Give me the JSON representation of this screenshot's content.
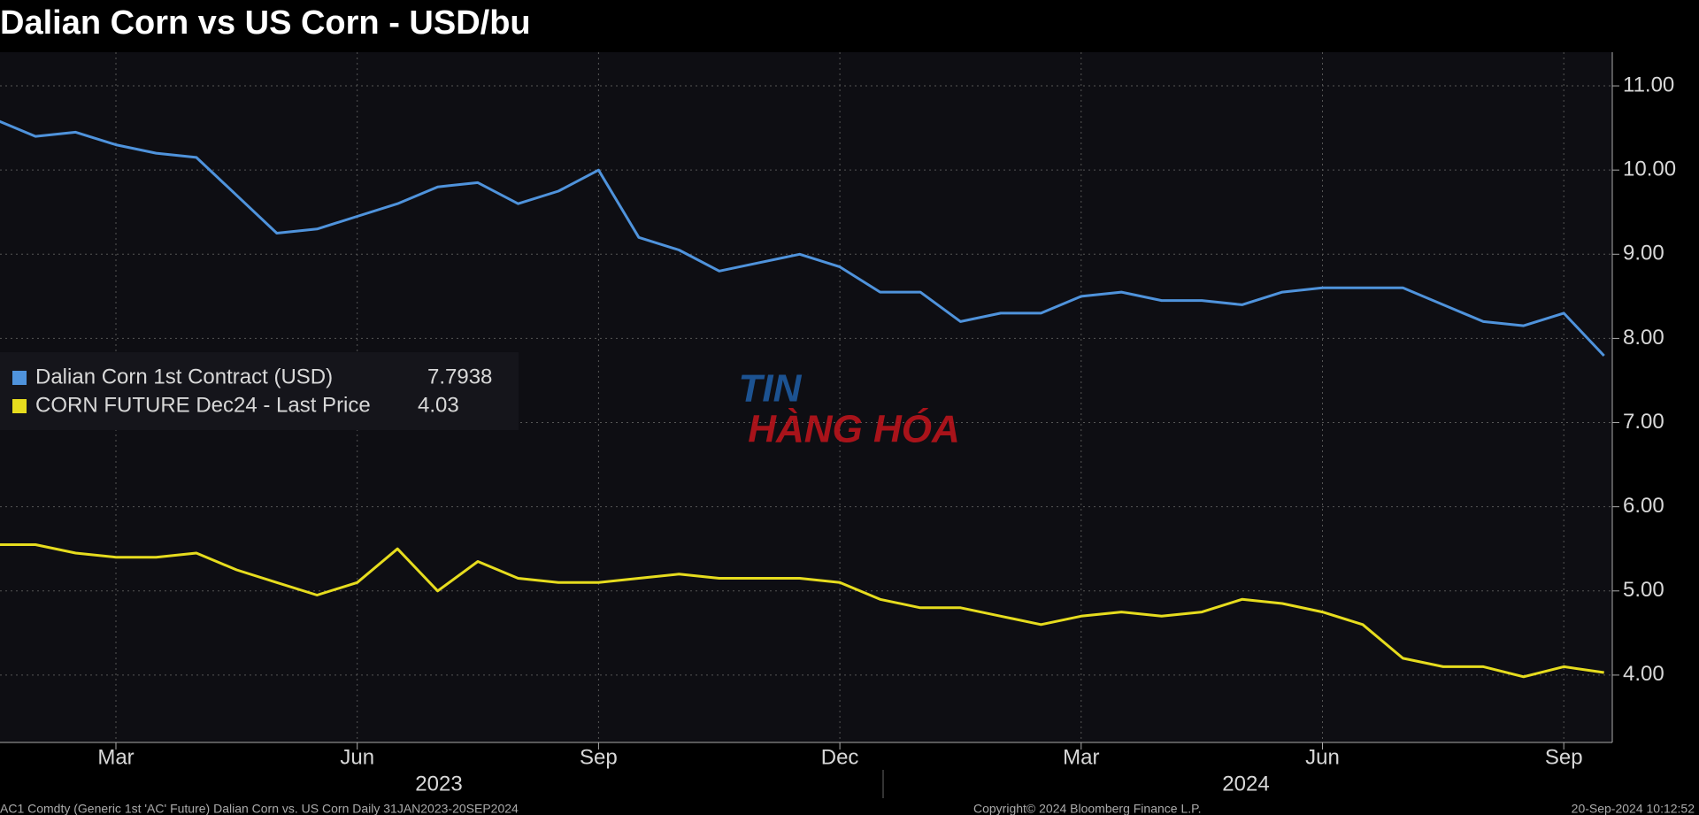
{
  "chart_data": {
    "type": "line",
    "title": "Dalian Corn vs US Corn - USD/bu",
    "categories": [
      null,
      null,
      null,
      "Mar",
      null,
      null,
      null,
      null,
      null,
      "Jun",
      null,
      null,
      null,
      null,
      null,
      "Sep",
      null,
      null,
      null,
      null,
      null,
      "Dec",
      null,
      null,
      null,
      null,
      null,
      "Mar",
      null,
      null,
      null,
      null,
      null,
      "Jun",
      null,
      null,
      null,
      null,
      null,
      "Sep",
      null
    ],
    "years": [
      "2023",
      "2024"
    ],
    "series": [
      {
        "name": "Dalian Corn 1st Contract (USD)",
        "color": "#4f93dc",
        "values": [
          10.6,
          10.4,
          10.45,
          10.3,
          10.2,
          10.15,
          9.7,
          9.25,
          9.3,
          9.45,
          9.6,
          9.8,
          9.85,
          9.6,
          9.75,
          10.0,
          9.2,
          9.05,
          8.8,
          8.9,
          9.0,
          8.85,
          8.55,
          8.55,
          8.2,
          8.3,
          8.3,
          8.5,
          8.55,
          8.45,
          8.45,
          8.4,
          8.55,
          8.6,
          8.6,
          8.6,
          8.4,
          8.2,
          8.15,
          8.3,
          7.7938
        ]
      },
      {
        "name": "CORN FUTURE Dec24 - Last Price",
        "color": "#e6dc1e",
        "values": [
          5.55,
          5.55,
          5.45,
          5.4,
          5.4,
          5.45,
          5.25,
          5.1,
          4.95,
          5.1,
          5.5,
          5.0,
          5.35,
          5.15,
          5.1,
          5.1,
          5.15,
          5.2,
          5.15,
          5.15,
          5.15,
          5.1,
          4.9,
          4.8,
          4.8,
          4.7,
          4.6,
          4.7,
          4.75,
          4.7,
          4.75,
          4.9,
          4.85,
          4.75,
          4.6,
          4.2,
          4.1,
          4.1,
          3.98,
          4.1,
          4.03
        ]
      }
    ],
    "ylim": [
      3.2,
      11.4
    ],
    "yticks": [
      {
        "value": 4,
        "label": "4.00"
      },
      {
        "value": 5,
        "label": "5.00"
      },
      {
        "value": 6,
        "label": "6.00"
      },
      {
        "value": 7,
        "label": "7.00"
      },
      {
        "value": 8,
        "label": "8.00"
      },
      {
        "value": 9,
        "label": "9.00"
      },
      {
        "value": 10,
        "label": "10.00"
      },
      {
        "value": 11,
        "label": "11.00"
      }
    ],
    "grid": true,
    "legend": "left",
    "watermark": {
      "top": "TIN",
      "bottom": "HÀNG HÓA"
    },
    "footer": {
      "left": "AC1 Comdty (Generic 1st 'AC' Future) Dalian Corn vs. US Corn  Daily 31JAN2023-20SEP2024",
      "center": "Copyright© 2024 Bloomberg Finance L.P.",
      "right": "20-Sep-2024 10:12:52"
    }
  }
}
